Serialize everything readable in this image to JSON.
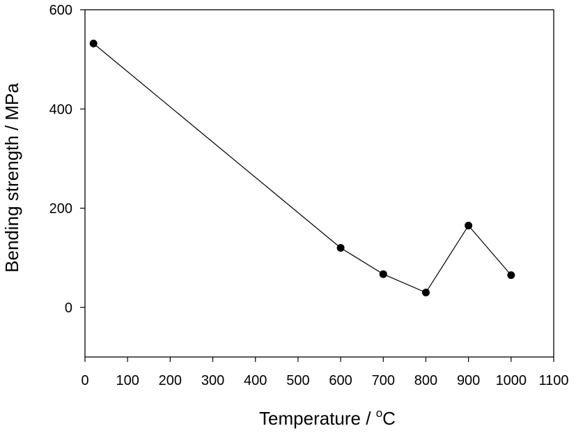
{
  "chart_data": {
    "type": "line",
    "title": "",
    "xlabel": "Temperature / ",
    "xlabel_unit_sup": "o",
    "xlabel_unit": "C",
    "ylabel": "Bending strength / MPa",
    "xlim": [
      0,
      1100
    ],
    "ylim": [
      -100,
      600
    ],
    "xticks": [
      0,
      100,
      200,
      300,
      400,
      500,
      600,
      700,
      800,
      900,
      1000,
      1100
    ],
    "yticks": [
      0,
      200,
      400,
      600
    ],
    "grid": false,
    "series": [
      {
        "name": "Bending strength",
        "x": [
          20,
          600,
          700,
          800,
          900,
          1000
        ],
        "y": [
          532,
          120,
          67,
          30,
          165,
          65
        ]
      }
    ]
  }
}
